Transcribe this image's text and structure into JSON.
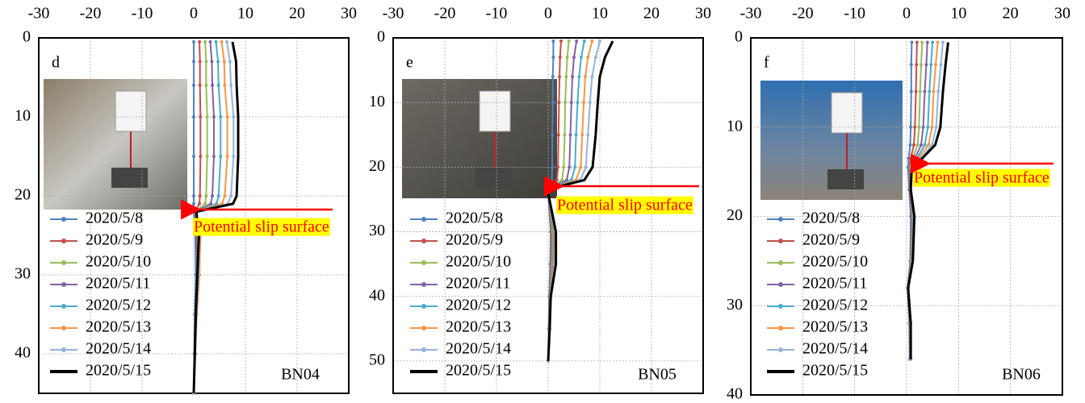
{
  "chart_data": [
    {
      "type": "line",
      "label": "d",
      "name": "BN04",
      "annotation": "Potential slip surface",
      "xlim": [
        -30,
        30
      ],
      "xticks": [
        -30,
        -20,
        -10,
        0,
        10,
        20,
        30
      ],
      "ylim": [
        0,
        45
      ],
      "yticks": [
        0,
        10,
        20,
        30,
        40
      ],
      "grid": true,
      "y": [
        0.5,
        3,
        6,
        10,
        15,
        20,
        21,
        22,
        25,
        30,
        35,
        40,
        45
      ],
      "series": [
        {
          "name": "2020/5/8",
          "color": "#4f81bd",
          "values": [
            0,
            0,
            0,
            0,
            0,
            0,
            0,
            0,
            0.3,
            0.4,
            0.2,
            0.1,
            0
          ]
        },
        {
          "name": "2020/5/9",
          "color": "#c0504d",
          "values": [
            1.1,
            1.2,
            1.2,
            1.3,
            1.3,
            1.2,
            1.1,
            0.2,
            0.6,
            0.7,
            0.3,
            0.2,
            0
          ]
        },
        {
          "name": "2020/5/10",
          "color": "#9bbb59",
          "values": [
            2.2,
            2.4,
            2.4,
            2.6,
            2.6,
            2.4,
            2.2,
            0.3,
            0.8,
            0.9,
            0.4,
            0.2,
            0
          ]
        },
        {
          "name": "2020/5/11",
          "color": "#8064a2",
          "values": [
            3.2,
            3.5,
            3.6,
            3.9,
            3.9,
            3.6,
            3.3,
            0.3,
            1,
            1,
            0.5,
            0.3,
            0
          ]
        },
        {
          "name": "2020/5/12",
          "color": "#4bacc6",
          "values": [
            4.3,
            4.7,
            4.8,
            5.2,
            5.2,
            4.8,
            4.4,
            0.4,
            1.2,
            1.1,
            0.5,
            0.3,
            0
          ]
        },
        {
          "name": "2020/5/13",
          "color": "#f79646",
          "values": [
            5.4,
            5.9,
            6,
            6.5,
            6.5,
            6,
            5.5,
            0.4,
            1.3,
            1.1,
            0.6,
            0.3,
            0
          ]
        },
        {
          "name": "2020/5/14",
          "color": "#95b3d7",
          "values": [
            6.4,
            7,
            7.2,
            7.7,
            7.7,
            7.2,
            6.6,
            0.5,
            1.1,
            0.9,
            0.5,
            0.3,
            0
          ]
        },
        {
          "name": "2020/5/15",
          "color": "#000000",
          "values": [
            7.5,
            8.2,
            8.3,
            8.6,
            8.6,
            8.3,
            7.6,
            0.5,
            1,
            0.7,
            0.4,
            0.2,
            0
          ]
        }
      ]
    },
    {
      "type": "line",
      "label": "e",
      "name": "BN05",
      "annotation": "Potential slip surface",
      "xlim": [
        -30,
        30
      ],
      "xticks": [
        -30,
        -20,
        -10,
        0,
        10,
        20,
        30
      ],
      "ylim": [
        0,
        55
      ],
      "yticks": [
        0,
        10,
        20,
        30,
        40,
        50
      ],
      "grid": true,
      "y": [
        0.5,
        3,
        6,
        10,
        15,
        20,
        22,
        23,
        24,
        30,
        35,
        40,
        45,
        50
      ],
      "series": [
        {
          "name": "2020/5/8",
          "color": "#4f81bd",
          "values": [
            1,
            1,
            0.9,
            0.9,
            0.8,
            0.8,
            0.7,
            0.3,
            0,
            0.5,
            0.4,
            0.2,
            0.1,
            0
          ]
        },
        {
          "name": "2020/5/9",
          "color": "#c0504d",
          "values": [
            2.5,
            2.3,
            2.2,
            2.1,
            2,
            1.9,
            1.7,
            0.5,
            0,
            0.7,
            0.6,
            0.3,
            0.2,
            0
          ]
        },
        {
          "name": "2020/5/10",
          "color": "#9bbb59",
          "values": [
            4,
            3.7,
            3.5,
            3.3,
            3.2,
            3,
            2.7,
            0.8,
            0,
            0.9,
            0.8,
            0.4,
            0.2,
            0
          ]
        },
        {
          "name": "2020/5/11",
          "color": "#8064a2",
          "values": [
            5.5,
            5,
            4.7,
            4.5,
            4.3,
            4.1,
            3.6,
            1,
            0,
            1.1,
            1,
            0.5,
            0.2,
            0
          ]
        },
        {
          "name": "2020/5/12",
          "color": "#4bacc6",
          "values": [
            7,
            6.4,
            6,
            5.7,
            5.4,
            5.2,
            4.5,
            1.2,
            0,
            1.2,
            1.1,
            0.5,
            0.3,
            0
          ]
        },
        {
          "name": "2020/5/13",
          "color": "#f79646",
          "values": [
            8.5,
            7.7,
            7.2,
            6.9,
            6.6,
            6.3,
            5.4,
            1.4,
            0,
            1.3,
            1.2,
            0.5,
            0.3,
            0
          ]
        },
        {
          "name": "2020/5/14",
          "color": "#95b3d7",
          "values": [
            10,
            9.2,
            8.5,
            8.1,
            7.7,
            7.3,
            6.2,
            1.7,
            0,
            1.4,
            1.3,
            0.5,
            0.3,
            0
          ]
        },
        {
          "name": "2020/5/15",
          "color": "#000000",
          "values": [
            12.5,
            11,
            10,
            9.6,
            9.2,
            8.6,
            7,
            2,
            0,
            1.5,
            1.5,
            0.5,
            0.3,
            0
          ]
        }
      ]
    },
    {
      "type": "line",
      "label": "f",
      "name": "BN06",
      "annotation": "Potential slip surface",
      "xlim": [
        -30,
        30
      ],
      "xticks": [
        -30,
        -20,
        -10,
        0,
        10,
        20,
        30
      ],
      "ylim": [
        0,
        40
      ],
      "yticks": [
        0,
        10,
        20,
        30,
        40
      ],
      "grid": true,
      "y": [
        0.5,
        3,
        6,
        10,
        12,
        13.5,
        14.5,
        17,
        20,
        25,
        28,
        32,
        36
      ],
      "series": [
        {
          "name": "2020/5/8",
          "color": "#4f81bd",
          "values": [
            1,
            0.9,
            0.9,
            0.8,
            0.7,
            0.4,
            0.3,
            0.5,
            0.8,
            0.7,
            0.2,
            0.5,
            0.6
          ]
        },
        {
          "name": "2020/5/9",
          "color": "#c0504d",
          "values": [
            2,
            1.9,
            1.8,
            1.6,
            1.4,
            0.8,
            0.5,
            0.6,
            1,
            0.8,
            0.2,
            0.6,
            0.7
          ]
        },
        {
          "name": "2020/5/10",
          "color": "#9bbb59",
          "values": [
            3,
            2.8,
            2.6,
            2.4,
            2.1,
            1.2,
            0.6,
            0.7,
            1.1,
            0.9,
            0.3,
            0.6,
            0.7
          ]
        },
        {
          "name": "2020/5/11",
          "color": "#8064a2",
          "values": [
            4,
            3.8,
            3.5,
            3.2,
            2.8,
            1.6,
            0.7,
            0.7,
            1.2,
            1,
            0.3,
            0.7,
            0.8
          ]
        },
        {
          "name": "2020/5/12",
          "color": "#4bacc6",
          "values": [
            5,
            4.7,
            4.4,
            4.1,
            3.5,
            2,
            0.8,
            0.8,
            1.3,
            1,
            0.3,
            0.7,
            0.8
          ]
        },
        {
          "name": "2020/5/13",
          "color": "#f79646",
          "values": [
            6,
            5.6,
            5.2,
            4.9,
            4.2,
            2.3,
            0.9,
            0.8,
            1.4,
            1.1,
            0.3,
            0.7,
            0.8
          ]
        },
        {
          "name": "2020/5/14",
          "color": "#95b3d7",
          "values": [
            7,
            6.6,
            6.1,
            5.7,
            4.9,
            2.7,
            1,
            0.8,
            1.4,
            1.1,
            0.3,
            0.8,
            0.8
          ]
        },
        {
          "name": "2020/5/15",
          "color": "#000000",
          "values": [
            8,
            7.5,
            7,
            6.5,
            5.5,
            3,
            1,
            0.8,
            1.5,
            1.2,
            0.3,
            0.8,
            0.8
          ]
        }
      ]
    }
  ]
}
